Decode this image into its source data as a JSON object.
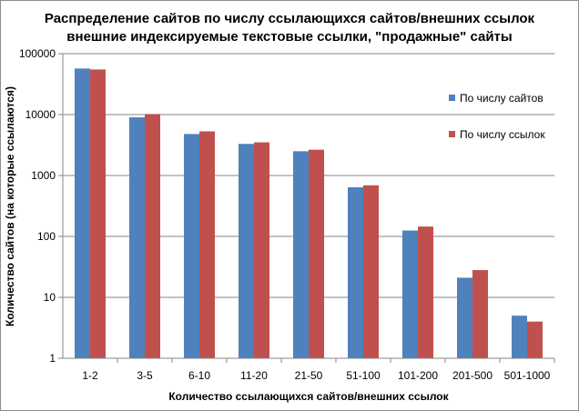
{
  "chart_data": {
    "type": "bar",
    "title": [
      "Распределение сайтов по числу ссылающихся сайтов/внешних ссылок",
      "внешние индексируемые текстовые ссылки, \"продажные\" сайты"
    ],
    "xlabel": "Количество ссылающихся сайтов/внешних ссылок",
    "ylabel": "Количество сайтов (на которые ссылаются)",
    "yscale": "log",
    "ylim": [
      1,
      100000
    ],
    "yticks": [
      "1",
      "10",
      "100",
      "1000",
      "10000",
      "100000"
    ],
    "grid": "horizontal",
    "legend_position": "right",
    "categories": [
      "1-2",
      "3-5",
      "6-10",
      "11-20",
      "21-50",
      "51-100",
      "101-200",
      "201-500",
      "501-1000"
    ],
    "series": [
      {
        "name": "По числу сайтов",
        "color": "#4f81bd",
        "values": [
          57000,
          9000,
          4800,
          3300,
          2500,
          640,
          125,
          21,
          5
        ]
      },
      {
        "name": "По числу ссылок",
        "color": "#c0504d",
        "values": [
          55000,
          10200,
          5300,
          3500,
          2650,
          690,
          145,
          28,
          4
        ]
      }
    ]
  }
}
